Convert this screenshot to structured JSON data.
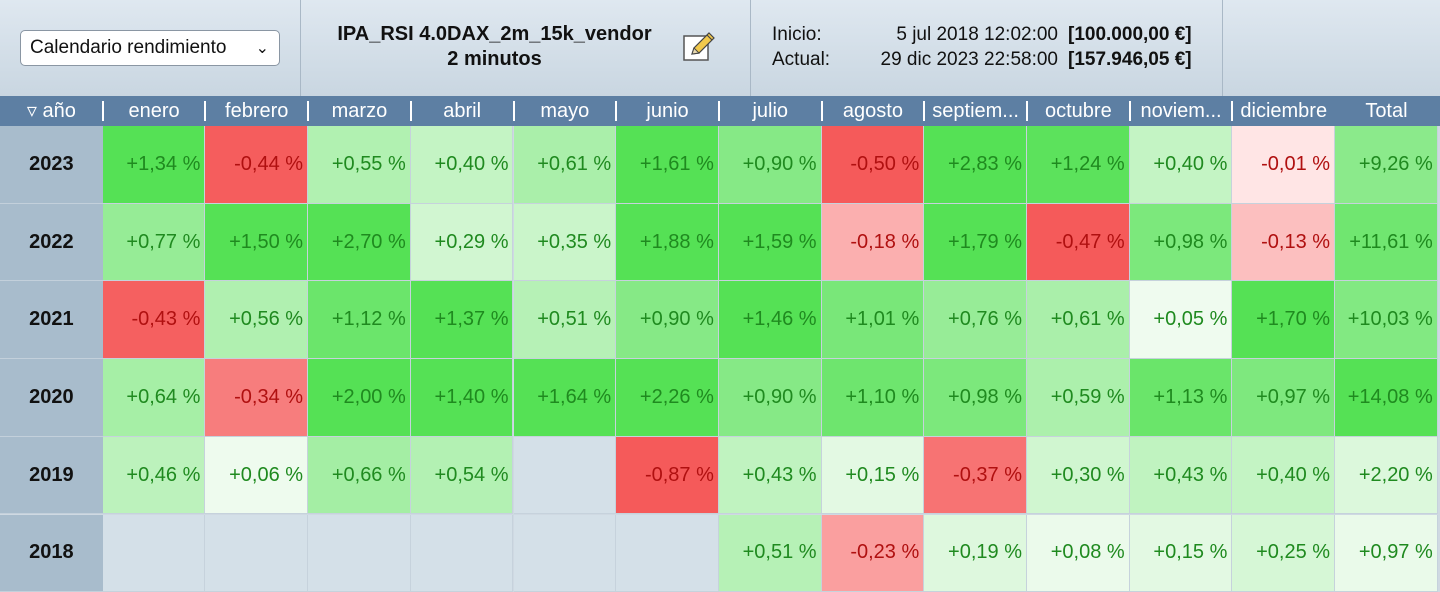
{
  "toolbar": {
    "view_select": "Calendario rendimiento",
    "strategy_name": "IPA_RSI 4.0DAX_2m_15k_vendor",
    "timeframe": "2 minutos",
    "start_label": "Inicio:",
    "start_date": "5 jul 2018 12:02:00",
    "start_value": "[100.000,00 €]",
    "current_label": "Actual:",
    "current_date": "29 dic 2023 22:58:00",
    "current_value": "[157.946,05 €]"
  },
  "table": {
    "year_header": "▿ año",
    "months": [
      "enero",
      "febrero",
      "marzo",
      "abril",
      "mayo",
      "junio",
      "julio",
      "agosto",
      "septiem...",
      "octubre",
      "noviem...",
      "diciembre",
      "Total"
    ],
    "rows": [
      {
        "year": "2023",
        "values": [
          "+1,34 %",
          "-0,44 %",
          "+0,55 %",
          "+0,40 %",
          "+0,61 %",
          "+1,61 %",
          "+0,90 %",
          "-0,50 %",
          "+2,83 %",
          "+1,24 %",
          "+0,40 %",
          "-0,01 %",
          "+9,26 %"
        ]
      },
      {
        "year": "2022",
        "values": [
          "+0,77 %",
          "+1,50 %",
          "+2,70 %",
          "+0,29 %",
          "+0,35 %",
          "+1,88 %",
          "+1,59 %",
          "-0,18 %",
          "+1,79 %",
          "-0,47 %",
          "+0,98 %",
          "-0,13 %",
          "+11,61 %"
        ]
      },
      {
        "year": "2021",
        "values": [
          "-0,43 %",
          "+0,56 %",
          "+1,12 %",
          "+1,37 %",
          "+0,51 %",
          "+0,90 %",
          "+1,46 %",
          "+1,01 %",
          "+0,76 %",
          "+0,61 %",
          "+0,05 %",
          "+1,70 %",
          "+10,03 %"
        ]
      },
      {
        "year": "2020",
        "values": [
          "+0,64 %",
          "-0,34 %",
          "+2,00 %",
          "+1,40 %",
          "+1,64 %",
          "+2,26 %",
          "+0,90 %",
          "+1,10 %",
          "+0,98 %",
          "+0,59 %",
          "+1,13 %",
          "+0,97 %",
          "+14,08 %"
        ]
      },
      {
        "year": "2019",
        "values": [
          "+0,46 %",
          "+0,06 %",
          "+0,66 %",
          "+0,54 %",
          "",
          "-0,87 %",
          "+0,43 %",
          "+0,15 %",
          "-0,37 %",
          "+0,30 %",
          "+0,43 %",
          "+0,40 %",
          "+2,20 %"
        ]
      },
      {
        "year": "2018",
        "values": [
          "",
          "",
          "",
          "",
          "",
          "",
          "+0,51 %",
          "-0,23 %",
          "+0,19 %",
          "+0,08 %",
          "+0,15 %",
          "+0,25 %",
          "+0,97 %"
        ]
      }
    ]
  },
  "colors": {
    "header_bg": "#5d7fa3",
    "year_bg": "#a8bccc",
    "empty_bg": "#d4e0e8",
    "positive_text": "#1f8a1f",
    "negative_text": "#b01010"
  }
}
